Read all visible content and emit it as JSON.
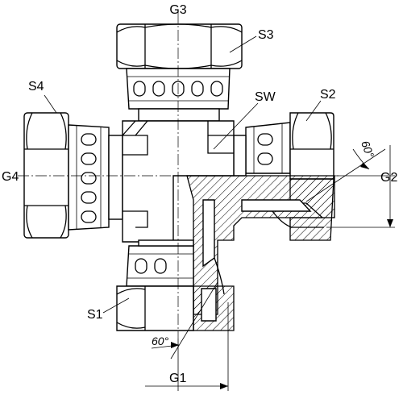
{
  "diagram": {
    "labels": {
      "g1": "G1",
      "g2": "G2",
      "g3": "G3",
      "g4": "G4",
      "s1": "S1",
      "s2": "S2",
      "s3": "S3",
      "s4": "S4",
      "sw": "SW",
      "angle_right": "60°",
      "angle_bottom": "60°"
    }
  }
}
